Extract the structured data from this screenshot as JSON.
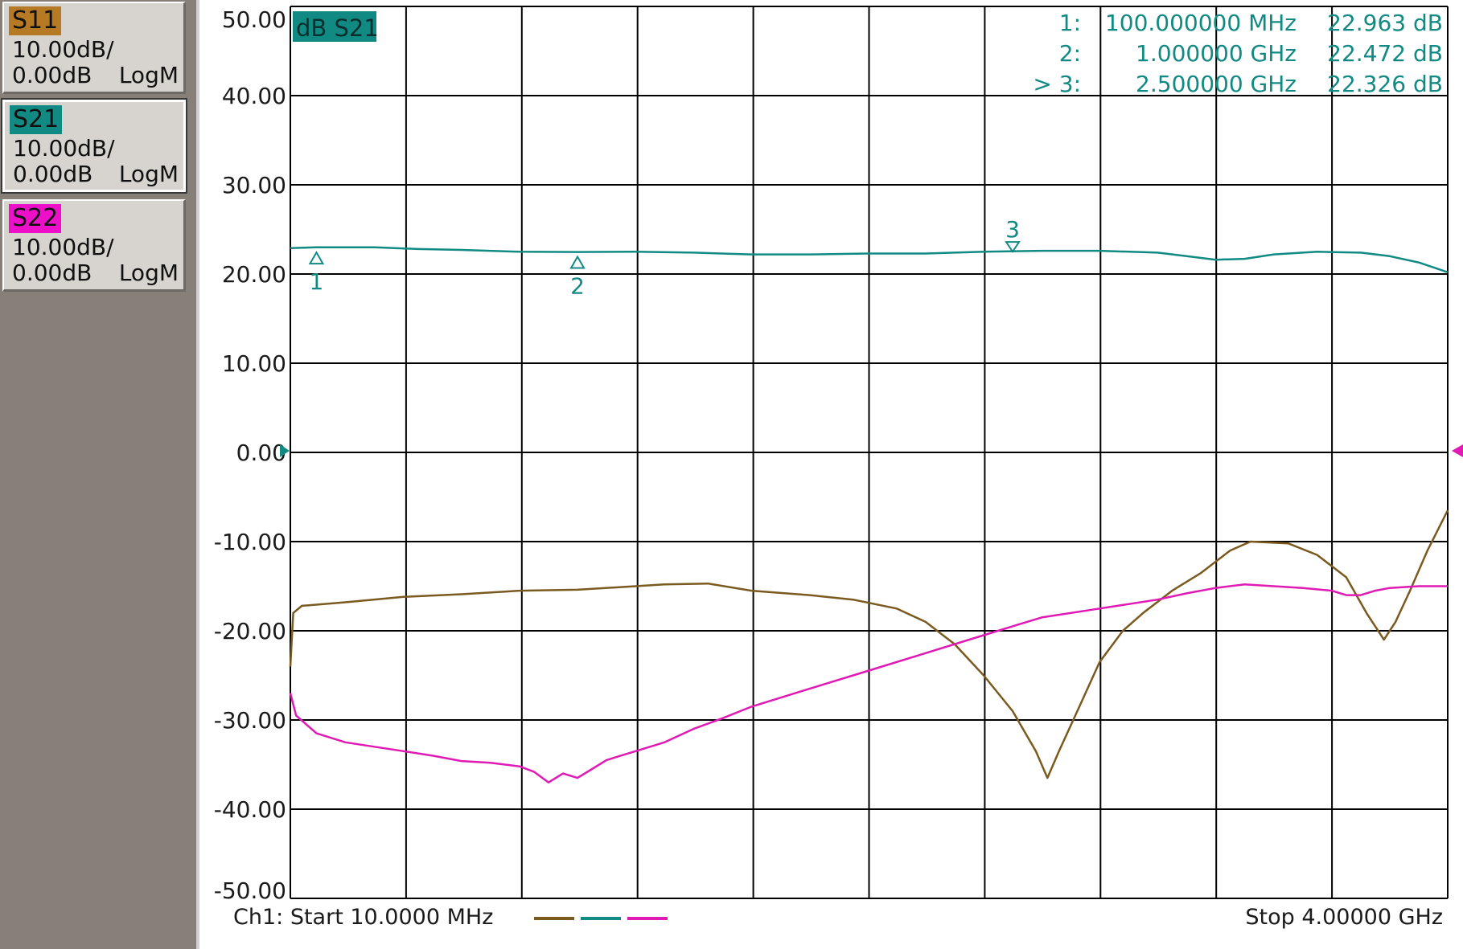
{
  "traces": [
    {
      "id": "S11",
      "tag": "S11",
      "scale": "10.00dB/",
      "ref": "0.00dB",
      "format": "LogM",
      "color": "#7a5a1e",
      "tag_bg": "#b67a25"
    },
    {
      "id": "S21",
      "tag": "S21",
      "scale": "10.00dB/",
      "ref": "0.00dB",
      "format": "LogM",
      "color": "#128a84",
      "tag_bg": "#128a84"
    },
    {
      "id": "S22",
      "tag": "S22",
      "scale": "10.00dB/",
      "ref": "0.00dB",
      "format": "LogM",
      "color": "#e01ab5",
      "tag_bg": "#ee10c8"
    }
  ],
  "active_trace_label": "dB S21",
  "markers": [
    {
      "label": "1:",
      "freq": "100.000000 MHz",
      "value": "22.963 dB",
      "num": "1",
      "x_ghz": 0.1,
      "y_db": 22.963,
      "direction": "up"
    },
    {
      "label": "2:",
      "freq": "1.000000 GHz",
      "value": "22.472 dB",
      "num": "2",
      "x_ghz": 1.0,
      "y_db": 22.472,
      "direction": "up"
    },
    {
      "label": "> 3:",
      "freq": "2.500000 GHz",
      "value": "22.326 dB",
      "num": "3",
      "x_ghz": 2.5,
      "y_db": 22.326,
      "direction": "down"
    }
  ],
  "footer": {
    "start_label": "Ch1: Start  10.0000 MHz",
    "stop_label": "Stop  4.00000 GHz"
  },
  "colors": {
    "grid": "#000000",
    "background": "#ffffff",
    "sidebar": "#868079"
  },
  "chart_data": {
    "type": "line",
    "title": "",
    "xlabel": "",
    "ylabel": "",
    "xlim": [
      0.01,
      4.0
    ],
    "ylim": [
      -50,
      50
    ],
    "x_units": "GHz",
    "y_units": "dB",
    "y_ticks": [
      "50.00",
      "40.00",
      "30.00",
      "20.00",
      "10.00",
      "0.00",
      "-10.00",
      "-20.00",
      "-30.00",
      "-40.00",
      "-50.00"
    ],
    "y_tick_values": [
      50,
      40,
      30,
      20,
      10,
      0,
      -10,
      -20,
      -30,
      -40,
      -50
    ],
    "x_divisions": 10,
    "grid": true,
    "series": [
      {
        "name": "S11",
        "color": "#7a5a1e",
        "points": [
          [
            0.01,
            -24
          ],
          [
            0.02,
            -18
          ],
          [
            0.05,
            -17.2
          ],
          [
            0.2,
            -16.8
          ],
          [
            0.4,
            -16.2
          ],
          [
            0.6,
            -15.9
          ],
          [
            0.8,
            -15.5
          ],
          [
            1.0,
            -15.4
          ],
          [
            1.2,
            -15.0
          ],
          [
            1.3,
            -14.8
          ],
          [
            1.45,
            -14.7
          ],
          [
            1.6,
            -15.5
          ],
          [
            1.8,
            -16.0
          ],
          [
            1.95,
            -16.5
          ],
          [
            2.1,
            -17.5
          ],
          [
            2.2,
            -19.0
          ],
          [
            2.3,
            -21.5
          ],
          [
            2.4,
            -25.0
          ],
          [
            2.5,
            -29.0
          ],
          [
            2.58,
            -33.5
          ],
          [
            2.62,
            -36.5
          ],
          [
            2.66,
            -33.5
          ],
          [
            2.73,
            -28.5
          ],
          [
            2.8,
            -23.5
          ],
          [
            2.88,
            -20.0
          ],
          [
            2.95,
            -18.0
          ],
          [
            3.05,
            -15.5
          ],
          [
            3.15,
            -13.5
          ],
          [
            3.25,
            -11.0
          ],
          [
            3.32,
            -10.0
          ],
          [
            3.45,
            -10.2
          ],
          [
            3.55,
            -11.5
          ],
          [
            3.65,
            -14.0
          ],
          [
            3.72,
            -18.0
          ],
          [
            3.78,
            -21.0
          ],
          [
            3.82,
            -19.0
          ],
          [
            3.87,
            -15.5
          ],
          [
            3.93,
            -11.0
          ],
          [
            4.0,
            -6.5
          ]
        ]
      },
      {
        "name": "S21",
        "color": "#128a84",
        "points": [
          [
            0.01,
            22.9
          ],
          [
            0.1,
            23.0
          ],
          [
            0.3,
            23.0
          ],
          [
            0.45,
            22.8
          ],
          [
            0.6,
            22.7
          ],
          [
            0.8,
            22.5
          ],
          [
            1.0,
            22.47
          ],
          [
            1.2,
            22.5
          ],
          [
            1.4,
            22.4
          ],
          [
            1.6,
            22.2
          ],
          [
            1.8,
            22.2
          ],
          [
            2.0,
            22.3
          ],
          [
            2.2,
            22.3
          ],
          [
            2.4,
            22.5
          ],
          [
            2.6,
            22.6
          ],
          [
            2.8,
            22.6
          ],
          [
            3.0,
            22.4
          ],
          [
            3.1,
            22.0
          ],
          [
            3.2,
            21.6
          ],
          [
            3.3,
            21.7
          ],
          [
            3.4,
            22.2
          ],
          [
            3.55,
            22.5
          ],
          [
            3.7,
            22.4
          ],
          [
            3.8,
            22.0
          ],
          [
            3.9,
            21.3
          ],
          [
            4.0,
            20.2
          ]
        ]
      },
      {
        "name": "S22",
        "color": "#e01ab5",
        "points": [
          [
            0.01,
            -27
          ],
          [
            0.03,
            -29.5
          ],
          [
            0.1,
            -31.5
          ],
          [
            0.2,
            -32.5
          ],
          [
            0.3,
            -33.0
          ],
          [
            0.4,
            -33.5
          ],
          [
            0.5,
            -34.0
          ],
          [
            0.6,
            -34.6
          ],
          [
            0.7,
            -34.8
          ],
          [
            0.8,
            -35.2
          ],
          [
            0.85,
            -35.8
          ],
          [
            0.9,
            -37.0
          ],
          [
            0.95,
            -36.0
          ],
          [
            1.0,
            -36.5
          ],
          [
            1.05,
            -35.5
          ],
          [
            1.1,
            -34.5
          ],
          [
            1.2,
            -33.5
          ],
          [
            1.3,
            -32.5
          ],
          [
            1.4,
            -31.0
          ],
          [
            1.5,
            -29.8
          ],
          [
            1.6,
            -28.5
          ],
          [
            1.8,
            -26.5
          ],
          [
            2.0,
            -24.5
          ],
          [
            2.2,
            -22.5
          ],
          [
            2.4,
            -20.5
          ],
          [
            2.5,
            -19.5
          ],
          [
            2.6,
            -18.5
          ],
          [
            2.8,
            -17.5
          ],
          [
            3.0,
            -16.5
          ],
          [
            3.1,
            -15.8
          ],
          [
            3.2,
            -15.2
          ],
          [
            3.3,
            -14.8
          ],
          [
            3.4,
            -15.0
          ],
          [
            3.5,
            -15.2
          ],
          [
            3.6,
            -15.5
          ],
          [
            3.65,
            -16.0
          ],
          [
            3.7,
            -16.0
          ],
          [
            3.75,
            -15.5
          ],
          [
            3.8,
            -15.2
          ],
          [
            3.9,
            -15.0
          ],
          [
            4.0,
            -15.0
          ]
        ]
      }
    ]
  }
}
